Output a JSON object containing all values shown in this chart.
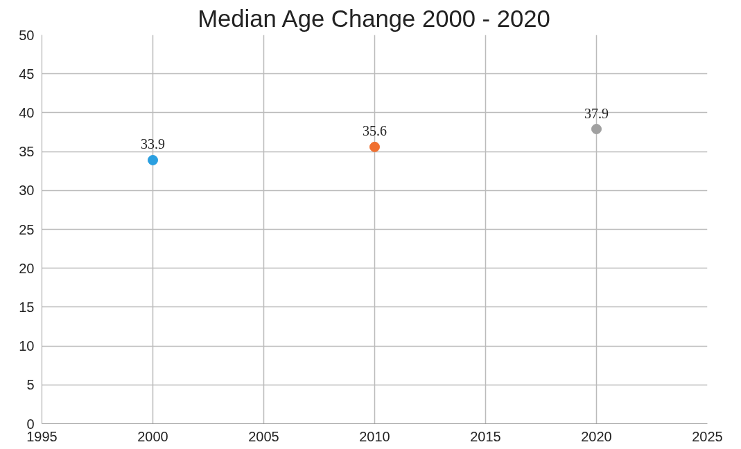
{
  "chart_data": {
    "type": "scatter",
    "title": "Median Age Change 2000 - 2020",
    "x": [
      2000,
      2010,
      2020
    ],
    "values": [
      33.9,
      35.6,
      37.9
    ],
    "colors": [
      "#2a9fe0",
      "#f07030",
      "#a0a0a0"
    ],
    "xlim": [
      1995,
      2025
    ],
    "xticks": [
      1995,
      2000,
      2005,
      2010,
      2015,
      2020,
      2025
    ],
    "ylim": [
      0,
      50
    ],
    "yticks": [
      0,
      5,
      10,
      15,
      20,
      25,
      30,
      35,
      40,
      45,
      50
    ],
    "grid": true,
    "marker": "circle",
    "data_labels": true
  }
}
